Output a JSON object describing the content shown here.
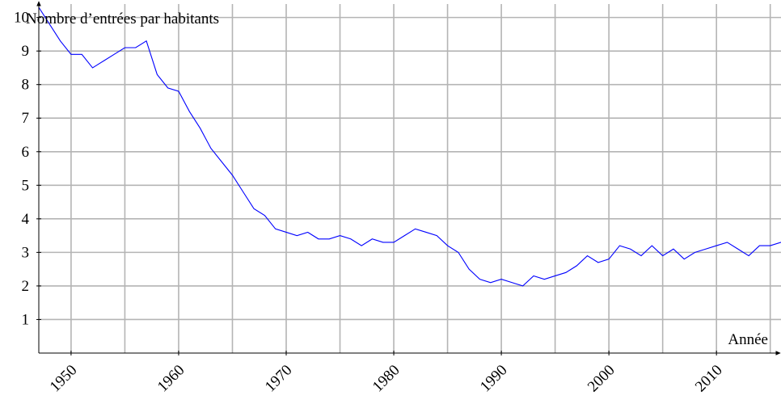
{
  "chart_data": {
    "type": "line",
    "y_label": "Nombre d’entrées par habitants",
    "x_label": "Année",
    "x": [
      1947,
      1948,
      1949,
      1950,
      1951,
      1952,
      1953,
      1954,
      1955,
      1956,
      1957,
      1958,
      1959,
      1960,
      1961,
      1962,
      1963,
      1964,
      1965,
      1966,
      1967,
      1968,
      1969,
      1970,
      1971,
      1972,
      1973,
      1974,
      1975,
      1976,
      1977,
      1978,
      1979,
      1980,
      1981,
      1982,
      1983,
      1984,
      1985,
      1986,
      1987,
      1988,
      1989,
      1990,
      1991,
      1992,
      1993,
      1994,
      1995,
      1996,
      1997,
      1998,
      1999,
      2000,
      2001,
      2002,
      2003,
      2004,
      2005,
      2006,
      2007,
      2008,
      2009,
      2010,
      2011,
      2012,
      2013,
      2014,
      2015,
      2016
    ],
    "series": [
      {
        "name": "Nombre d’entrées par habitants",
        "color": "#0000ff",
        "values": [
          10.3,
          9.8,
          9.3,
          8.9,
          8.9,
          8.5,
          8.7,
          8.9,
          9.1,
          9.1,
          9.3,
          8.3,
          7.9,
          7.8,
          7.2,
          6.7,
          6.1,
          5.7,
          5.3,
          4.8,
          4.3,
          4.1,
          3.7,
          3.6,
          3.5,
          3.6,
          3.4,
          3.4,
          3.5,
          3.4,
          3.2,
          3.4,
          3.3,
          3.3,
          3.5,
          3.7,
          3.6,
          3.5,
          3.2,
          3.0,
          2.5,
          2.2,
          2.1,
          2.2,
          2.1,
          2.0,
          2.3,
          2.2,
          2.3,
          2.4,
          2.6,
          2.9,
          2.7,
          2.8,
          3.2,
          3.1,
          2.9,
          3.2,
          2.9,
          3.1,
          2.8,
          3.0,
          3.1,
          3.2,
          3.3,
          3.1,
          2.9,
          3.2,
          3.2,
          3.3
        ]
      }
    ],
    "xlim": [
      1947,
      2016
    ],
    "ylim": [
      0,
      10.4
    ],
    "xticks": [
      1950,
      1960,
      1970,
      1980,
      1990,
      2000,
      2010
    ],
    "xminor": [
      1955,
      1965,
      1975,
      1985,
      1995,
      2005,
      2015
    ],
    "yticks": [
      1,
      2,
      3,
      4,
      5,
      6,
      7,
      8,
      9,
      10
    ],
    "grid": true
  }
}
